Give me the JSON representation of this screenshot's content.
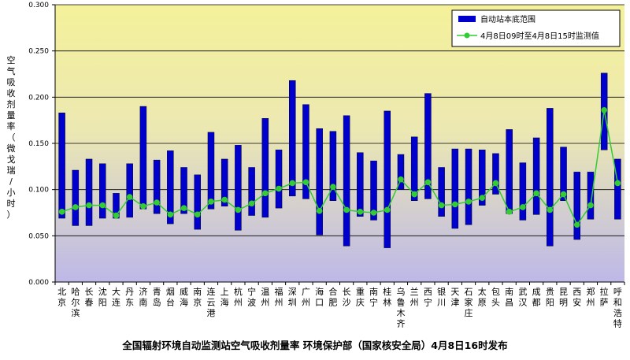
{
  "chart_data": {
    "type": "bar",
    "ylabel": "空气吸收剂量率（微戈瑞/小时）",
    "ylim": [
      0,
      0.3
    ],
    "yticks": [
      "0.000",
      "0.050",
      "0.100",
      "0.150",
      "0.200",
      "0.250",
      "0.300"
    ],
    "categories": [
      "北京",
      "哈尔滨",
      "长春",
      "沈阳",
      "大连",
      "丹东",
      "济南",
      "青岛",
      "烟台",
      "威海",
      "南京",
      "连云港",
      "上海",
      "杭州",
      "宁波",
      "温州",
      "福州",
      "深圳",
      "广州",
      "海口",
      "合肥",
      "长沙",
      "重庆",
      "南宁",
      "桂林",
      "乌鲁木齐",
      "兰州",
      "西宁",
      "银川",
      "天津",
      "石家庄",
      "太原",
      "包头",
      "南昌",
      "武汉",
      "成都",
      "贵阳",
      "昆明",
      "西安",
      "郑州",
      "拉萨",
      "呼和浩特"
    ],
    "series": [
      {
        "name": "自动站本底范围",
        "type": "range-bar",
        "color": "#0000cc",
        "low": [
          0.069,
          0.061,
          0.061,
          0.069,
          0.069,
          0.07,
          0.079,
          0.074,
          0.063,
          0.074,
          0.057,
          0.079,
          0.082,
          0.056,
          0.072,
          0.07,
          0.08,
          0.093,
          0.09,
          0.051,
          0.088,
          0.039,
          0.071,
          0.067,
          0.037,
          0.1,
          0.088,
          0.09,
          0.071,
          0.058,
          0.062,
          0.083,
          0.095,
          0.074,
          0.067,
          0.073,
          0.039,
          0.088,
          0.046,
          0.068,
          0.143,
          0.068
        ],
        "high": [
          0.183,
          0.121,
          0.133,
          0.128,
          0.096,
          0.128,
          0.19,
          0.132,
          0.142,
          0.124,
          0.116,
          0.162,
          0.133,
          0.148,
          0.124,
          0.177,
          0.143,
          0.218,
          0.192,
          0.166,
          0.163,
          0.18,
          0.14,
          0.131,
          0.185,
          0.138,
          0.157,
          0.204,
          0.124,
          0.144,
          0.144,
          0.143,
          0.139,
          0.165,
          0.129,
          0.156,
          0.188,
          0.146,
          0.119,
          0.119,
          0.226,
          0.133
        ]
      },
      {
        "name": "4月8日09时至4月8日15时监测值",
        "type": "line",
        "color": "#33cc33",
        "values": [
          0.076,
          0.081,
          0.083,
          0.083,
          0.072,
          0.092,
          0.082,
          0.086,
          0.073,
          0.08,
          0.073,
          0.087,
          0.089,
          0.078,
          0.085,
          0.096,
          0.101,
          0.107,
          0.108,
          0.077,
          0.103,
          0.078,
          0.076,
          0.075,
          0.078,
          0.111,
          0.095,
          0.108,
          0.083,
          0.084,
          0.087,
          0.091,
          0.107,
          0.076,
          0.081,
          0.096,
          0.078,
          0.095,
          0.062,
          0.083,
          0.186,
          0.107
        ]
      }
    ],
    "legend_position": "top-right",
    "background_gradient": [
      "#f4f19a",
      "#bdb8e8"
    ]
  },
  "footer": "全国辐射环境自动监测站空气吸收剂量率   环境保护部（国家核安全局）4月8日16时发布"
}
